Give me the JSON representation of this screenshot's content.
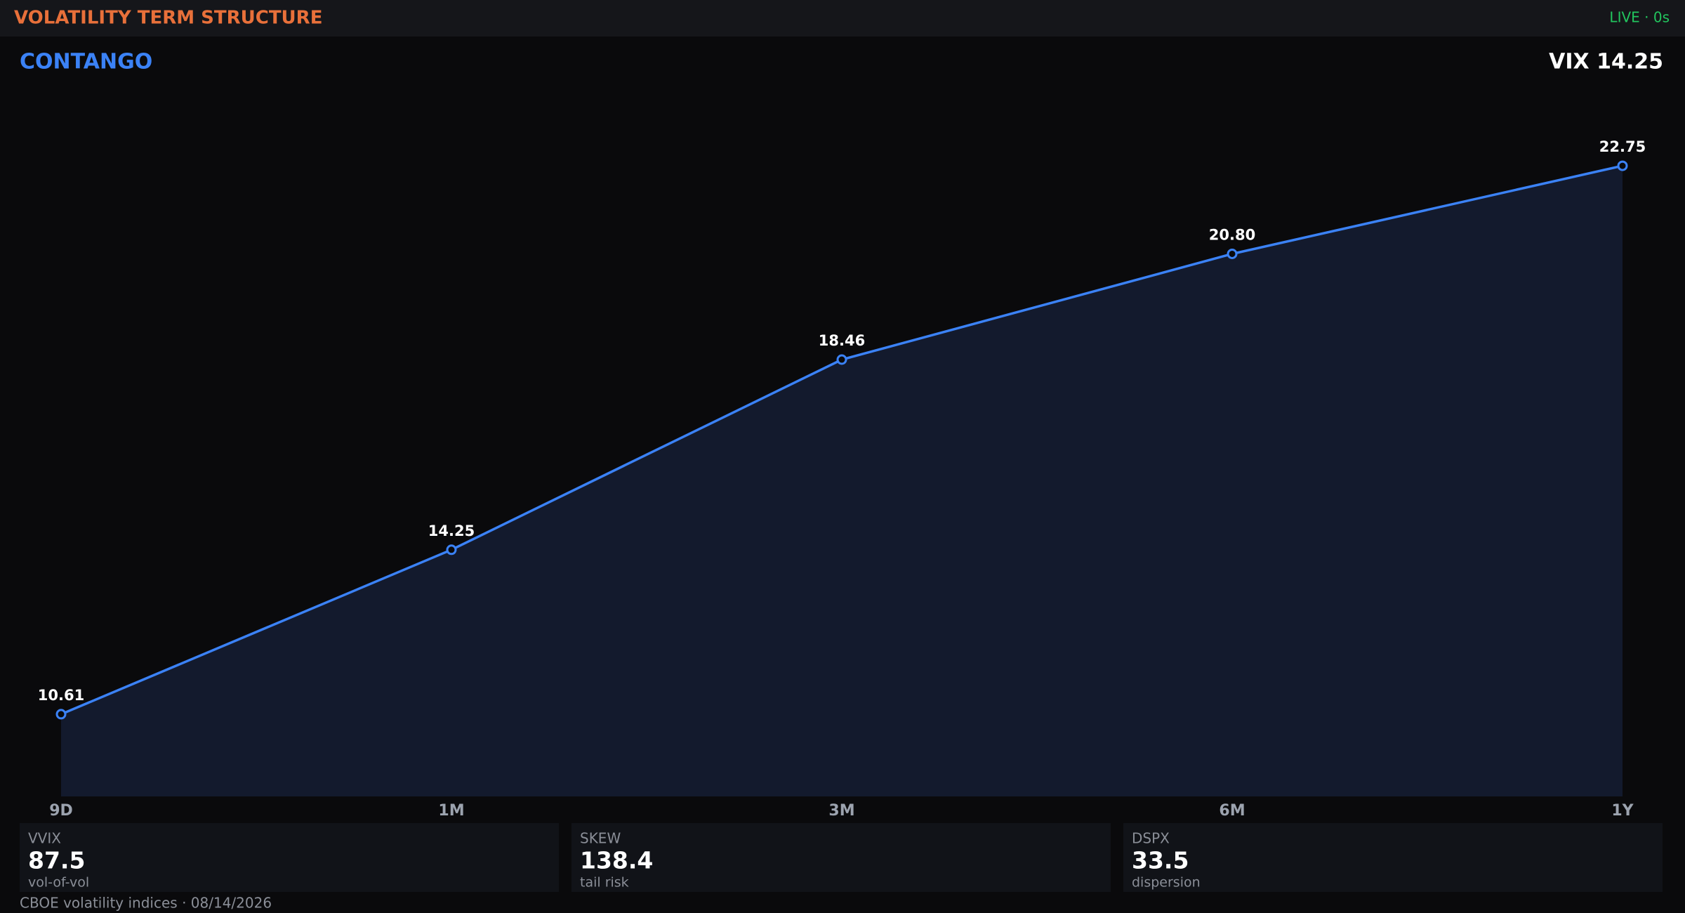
{
  "header": {
    "title": "VOLATILITY TERM STRUCTURE",
    "status": "LIVE · 0s",
    "regime": "CONTANGO",
    "vix": "VIX 14.25"
  },
  "chart_data": {
    "type": "line",
    "area": true,
    "color": "#3b82f6",
    "area_color": "#131a2d",
    "categories": [
      "9D",
      "1M",
      "3M",
      "6M",
      "1Y"
    ],
    "values": [
      10.61,
      14.25,
      18.46,
      20.8,
      22.75
    ],
    "value_labels": [
      "10.61",
      "14.25",
      "18.46",
      "20.80",
      "22.75"
    ],
    "ylim": [
      8.79,
      24.57
    ]
  },
  "stats": [
    {
      "label": "VVIX",
      "value": 87.5,
      "note": "vol-of-vol"
    },
    {
      "label": "SKEW",
      "value": 138.4,
      "note": "tail risk"
    },
    {
      "label": "DSPX",
      "value": 33.5,
      "note": "dispersion"
    }
  ],
  "footer": "CBOE volatility indices · 08/14/2026"
}
